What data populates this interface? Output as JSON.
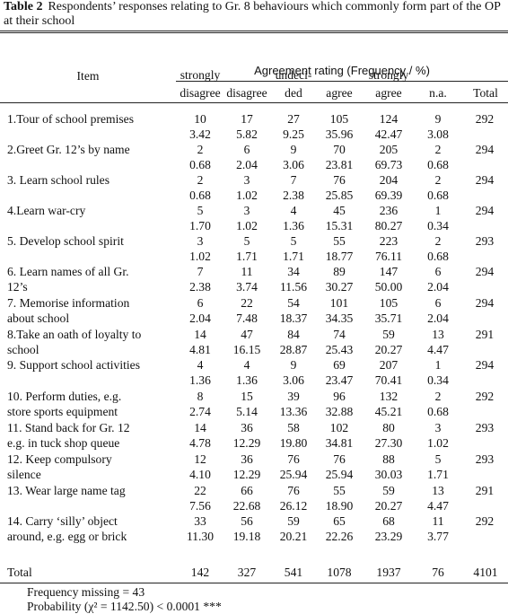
{
  "caption": {
    "label": "Table 2",
    "text": "Respondents’ responses relating to Gr. 8 behaviours which commonly form part of the OP at their school"
  },
  "header": {
    "group_title": "Agreement rating (Frequency / %)",
    "item_label": "Item",
    "columns": [
      [
        "strongly",
        "disagree"
      ],
      [
        "",
        "disagree"
      ],
      [
        "undeci-",
        "ded"
      ],
      [
        "",
        "agree"
      ],
      [
        "strongly",
        "agree"
      ],
      [
        "",
        "n.a."
      ],
      [
        "",
        "Total"
      ]
    ]
  },
  "rows": [
    {
      "item": [
        "1.Tour of school premises",
        ""
      ],
      "freq": [
        "10",
        "17",
        "27",
        "105",
        "124",
        "9"
      ],
      "pct": [
        "3.42",
        "5.82",
        "9.25",
        "35.96",
        "42.47",
        "3.08"
      ],
      "total": "292"
    },
    {
      "item": [
        "2.Greet Gr. 12’s by name",
        ""
      ],
      "freq": [
        "2",
        "6",
        "9",
        "70",
        "205",
        "2"
      ],
      "pct": [
        "0.68",
        "2.04",
        "3.06",
        "23.81",
        "69.73",
        "0.68"
      ],
      "total": "294"
    },
    {
      "item": [
        "3. Learn school rules",
        ""
      ],
      "freq": [
        "2",
        "3",
        "7",
        "76",
        "204",
        "2"
      ],
      "pct": [
        "0.68",
        "1.02",
        "2.38",
        "25.85",
        "69.39",
        "0.68"
      ],
      "total": "294"
    },
    {
      "item": [
        "4.Learn war-cry",
        ""
      ],
      "freq": [
        "5",
        "3",
        "4",
        "45",
        "236",
        "1"
      ],
      "pct": [
        "1.70",
        "1.02",
        "1.36",
        "15.31",
        "80.27",
        "0.34"
      ],
      "total": "294"
    },
    {
      "item": [
        "5. Develop school spirit",
        ""
      ],
      "freq": [
        "3",
        "5",
        "5",
        "55",
        "223",
        "2"
      ],
      "pct": [
        "1.02",
        "1.71",
        "1.71",
        "18.77",
        "76.11",
        "0.68"
      ],
      "total": "293"
    },
    {
      "item": [
        "6. Learn names of all Gr.",
        "12’s"
      ],
      "freq": [
        "7",
        "11",
        "34",
        "89",
        "147",
        "6"
      ],
      "pct": [
        "2.38",
        "3.74",
        "11.56",
        "30.27",
        "50.00",
        "2.04"
      ],
      "total": "294"
    },
    {
      "item": [
        "7. Memorise information",
        "about school"
      ],
      "freq": [
        "6",
        "22",
        "54",
        "101",
        "105",
        "6"
      ],
      "pct": [
        "2.04",
        "7.48",
        "18.37",
        "34.35",
        "35.71",
        "2.04"
      ],
      "total": "294"
    },
    {
      "item": [
        "8.Take an oath of loyalty to",
        "school"
      ],
      "freq": [
        "14",
        "47",
        "84",
        "74",
        "59",
        "13"
      ],
      "pct": [
        "4.81",
        "16.15",
        "28.87",
        "25.43",
        "20.27",
        "4.47"
      ],
      "total": "291"
    },
    {
      "item": [
        "9. Support school activities",
        ""
      ],
      "freq": [
        "4",
        "4",
        "9",
        "69",
        "207",
        "1"
      ],
      "pct": [
        "1.36",
        "1.36",
        "3.06",
        "23.47",
        "70.41",
        "0.34"
      ],
      "total": "294"
    },
    {
      "item": [
        "10. Perform duties, e.g.",
        "store sports equipment"
      ],
      "freq": [
        "8",
        "15",
        "39",
        "96",
        "132",
        "2"
      ],
      "pct": [
        "2.74",
        "5.14",
        "13.36",
        "32.88",
        "45.21",
        "0.68"
      ],
      "total": "292"
    },
    {
      "item": [
        "11. Stand  back for Gr. 12",
        "e.g. in tuck shop queue"
      ],
      "freq": [
        "14",
        "36",
        "58",
        "102",
        "80",
        "3"
      ],
      "pct": [
        "4.78",
        "12.29",
        "19.80",
        "34.81",
        "27.30",
        "1.02"
      ],
      "total": "293"
    },
    {
      "item": [
        "12. Keep compulsory",
        "silence"
      ],
      "freq": [
        "12",
        "36",
        "76",
        "76",
        "88",
        "5"
      ],
      "pct": [
        "4.10",
        "12.29",
        "25.94",
        "25.94",
        "30.03",
        "1.71"
      ],
      "total": "293"
    },
    {
      "item": [
        "13. Wear large name tag",
        ""
      ],
      "freq": [
        "22",
        "66",
        "76",
        "55",
        "59",
        "13"
      ],
      "pct": [
        "7.56",
        "22.68",
        "26.12",
        "18.90",
        "20.27",
        "4.47"
      ],
      "total": "291"
    },
    {
      "item": [
        "14. Carry ‘silly’ object",
        "around, e.g. egg or brick"
      ],
      "freq": [
        "33",
        "56",
        "59",
        "65",
        "68",
        "11"
      ],
      "pct": [
        "11.30",
        "19.18",
        "20.21",
        "22.26",
        "23.29",
        "3.77"
      ],
      "total": "292"
    }
  ],
  "totals": {
    "label": "Total",
    "values": [
      "142",
      "327",
      "541",
      "1078",
      "1937",
      "76",
      "4101"
    ]
  },
  "footnotes": {
    "missing": "Frequency missing = 43",
    "probability": "Probability (χ² = 1142.50) < 0.0001 ***"
  }
}
